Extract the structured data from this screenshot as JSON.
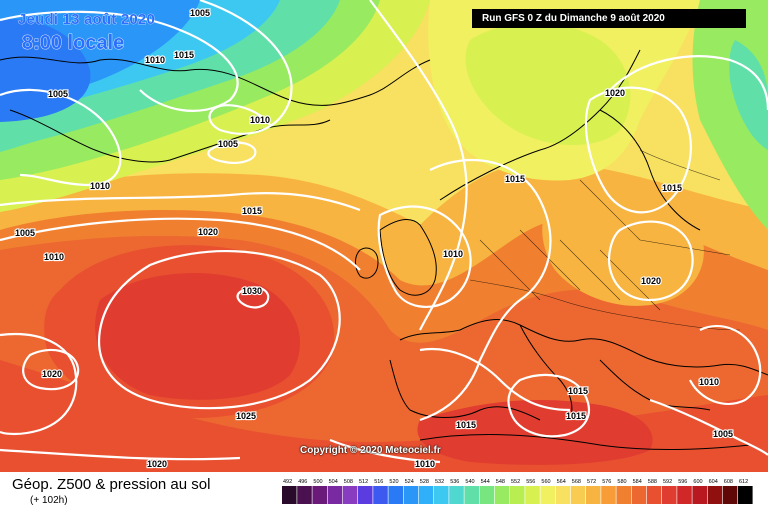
{
  "header": {
    "date_line": "Jeudi 13 août 2020",
    "time_line": "8:00 locale",
    "run_banner": "Run GFS 0 Z du Dimanche 9 août 2020"
  },
  "copyright": "Copyright © 2020 Meteociel.fr",
  "footer": {
    "parameter_title": "Géop. Z500 & pression au sol",
    "lead_time": "(+ 102h)"
  },
  "legend": {
    "values": [
      "492",
      "496",
      "500",
      "504",
      "508",
      "512",
      "516",
      "520",
      "524",
      "528",
      "532",
      "536",
      "540",
      "544",
      "548",
      "552",
      "556",
      "560",
      "564",
      "568",
      "572",
      "576",
      "580",
      "584",
      "588",
      "592",
      "596",
      "600",
      "604",
      "608",
      "612"
    ],
    "colors": [
      "#2a0a2a",
      "#4b1050",
      "#6a1a78",
      "#7a2aa0",
      "#8a3cc0",
      "#5a3ce0",
      "#3c5af0",
      "#2a7af5",
      "#2a96f8",
      "#30b0f8",
      "#3cc8f0",
      "#50d8d0",
      "#60e0a8",
      "#78e680",
      "#98ea60",
      "#b8ee50",
      "#d8f050",
      "#f0f060",
      "#f8e060",
      "#f8cc50",
      "#f8b440",
      "#f89c38",
      "#f08030",
      "#ec6830",
      "#e85030",
      "#e03c30",
      "#d02828",
      "#b81820",
      "#901010",
      "#600808",
      "#000000"
    ]
  },
  "isobar_labels": [
    {
      "text": "1005"
    },
    {
      "text": "1010"
    },
    {
      "text": "1015"
    },
    {
      "text": "1005"
    },
    {
      "text": "1010"
    },
    {
      "text": "1005"
    },
    {
      "text": "1010"
    },
    {
      "text": "1015"
    },
    {
      "text": "1020"
    },
    {
      "text": "1005"
    },
    {
      "text": "1010"
    },
    {
      "text": "1030"
    },
    {
      "text": "1020"
    },
    {
      "text": "1025"
    },
    {
      "text": "1020"
    },
    {
      "text": "1010"
    },
    {
      "text": "1015"
    },
    {
      "text": "1010"
    },
    {
      "text": "1020"
    },
    {
      "text": "1015"
    },
    {
      "text": "1020"
    },
    {
      "text": "1015"
    },
    {
      "text": "1015"
    },
    {
      "text": "1015"
    },
    {
      "text": "1010"
    },
    {
      "text": "1005"
    }
  ]
}
